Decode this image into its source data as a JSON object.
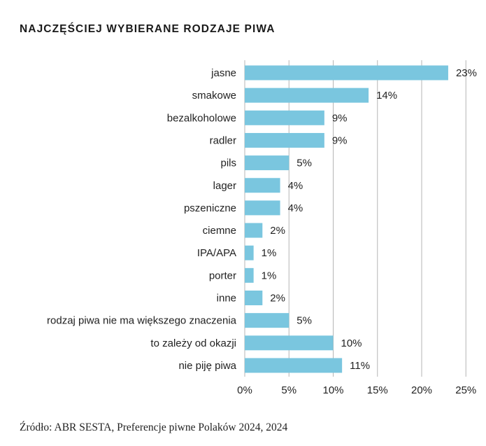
{
  "colors": {
    "bar": "#7ac6df",
    "grid": "#b5b5b5",
    "text": "#222222"
  },
  "chart_data": {
    "type": "bar",
    "orientation": "horizontal",
    "title": "NAJCZĘŚCIEJ WYBIERANE RODZAJE PIWA",
    "categories": [
      "jasne",
      "smakowe",
      "bezalkoholowe",
      "radler",
      "pils",
      "lager",
      "pszeniczne",
      "ciemne",
      "IPA/APA",
      "porter",
      "inne",
      "rodzaj piwa nie ma większego znaczenia",
      "to zależy od okazji",
      "nie piję piwa"
    ],
    "values": [
      23,
      14,
      9,
      9,
      5,
      4,
      4,
      2,
      1,
      1,
      2,
      5,
      10,
      11
    ],
    "value_labels": [
      "23%",
      "14%",
      "9%",
      "9%",
      "5%",
      "4%",
      "4%",
      "2%",
      "1%",
      "1%",
      "2%",
      "5%",
      "10%",
      "11%"
    ],
    "xticks": [
      0,
      5,
      10,
      15,
      20,
      25
    ],
    "xtick_labels": [
      "0%",
      "5%",
      "10%",
      "15%",
      "20%",
      "25%"
    ],
    "xlim": [
      0,
      25
    ],
    "xlabel": "",
    "ylabel": "",
    "grid": true
  },
  "source": "Źródło: ABR SESTA, Preferencje piwne Polaków 2024, 2024"
}
